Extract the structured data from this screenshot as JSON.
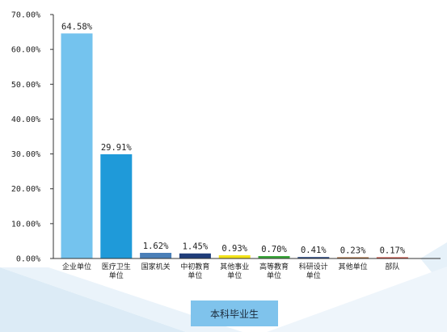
{
  "chart_data": {
    "type": "bar",
    "categories": [
      "企业单位",
      "医疗卫生\n单位",
      "国家机关",
      "中初教育\n单位",
      "其他事业\n单位",
      "高等教育\n单位",
      "科研设计\n单位",
      "其他单位",
      "部队"
    ],
    "values": [
      64.58,
      29.91,
      1.62,
      1.45,
      0.93,
      0.7,
      0.41,
      0.23,
      0.17
    ],
    "value_labels": [
      "64.58%",
      "29.91%",
      "1.62%",
      "1.45%",
      "0.93%",
      "0.70%",
      "0.41%",
      "0.23%",
      "0.17%"
    ],
    "ylim": [
      0,
      70
    ],
    "yticks": [
      "0.00%",
      "10.00%",
      "20.00%",
      "30.00%",
      "40.00%",
      "50.00%",
      "60.00%",
      "70.00%"
    ],
    "bar_colors": [
      "#74c3ee",
      "#1f9ad9",
      "#4a7fb8",
      "#1f3d7a",
      "#f2e21a",
      "#3aa53a",
      "#1f3d7a",
      "#9a5a2a",
      "#c0392b"
    ],
    "xlabel": "",
    "ylabel": "",
    "legend": "none",
    "grid": false
  },
  "footer": {
    "label": "本科毕业生",
    "bg_color": "#7fc3ec"
  },
  "theme": {
    "accent": "#74c3ee",
    "decor": "#dcebf6"
  }
}
